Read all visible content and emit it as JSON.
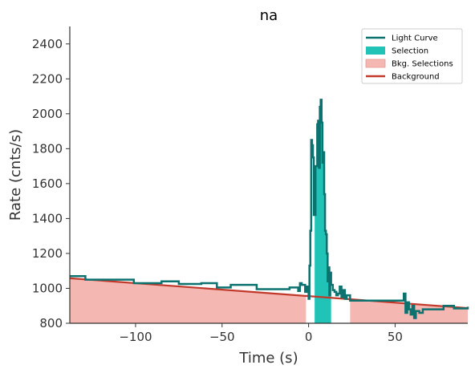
{
  "chart_data": {
    "type": "line",
    "title": "na",
    "xlabel": "Time (s)",
    "ylabel": "Rate (cnts/s)",
    "xlim": [
      -138,
      92
    ],
    "ylim": [
      800,
      2500
    ],
    "xticks": [
      -100,
      -50,
      0,
      50
    ],
    "yticks": [
      800,
      1000,
      1200,
      1400,
      1600,
      1800,
      2000,
      2200,
      2400
    ],
    "grid": false,
    "legend_position": "top-right",
    "colors": {
      "light_curve": "#0b7270",
      "selection": "#20c3b5",
      "bkg_selection": "#f5b7b1",
      "background": "#c0392b"
    },
    "legend": [
      {
        "label": "Light Curve",
        "kind": "line",
        "color": "#0b7270"
      },
      {
        "label": "Selection",
        "kind": "patch",
        "color": "#20c3b5"
      },
      {
        "label": "Bkg. Selections",
        "kind": "patch",
        "color": "#f5b7b1"
      },
      {
        "label": "Background",
        "kind": "line",
        "color": "#c0392b"
      }
    ],
    "selection_interval": [
      3.5,
      13
    ],
    "bkg_intervals": [
      [
        -138,
        -1.5
      ],
      [
        24,
        92
      ]
    ],
    "background_model": {
      "x": [
        -138,
        92
      ],
      "y": [
        1058,
        887
      ]
    },
    "light_curve": {
      "x": [
        -138,
        -129,
        -110,
        -101,
        -85,
        -75,
        -62,
        -53,
        -45,
        -30,
        -21,
        -11,
        -6,
        -5,
        -4,
        -2,
        -1,
        0,
        0.5,
        1,
        1.5,
        2,
        2.5,
        3,
        4,
        5,
        5.5,
        6,
        6.5,
        7,
        7.5,
        8,
        8.5,
        9,
        9.5,
        10,
        10.5,
        11,
        11.5,
        12,
        12.5,
        13,
        14,
        15,
        16,
        17,
        18,
        19,
        20,
        21,
        22,
        24,
        55,
        56,
        57,
        58,
        59,
        60,
        61,
        62,
        64,
        66,
        78,
        84,
        92
      ],
      "y": [
        1070,
        1050,
        1050,
        1030,
        1040,
        1025,
        1030,
        1005,
        1020,
        995,
        995,
        1005,
        985,
        1030,
        1020,
        980,
        1010,
        940,
        1130,
        1330,
        1850,
        1820,
        1750,
        1420,
        1700,
        1940,
        1960,
        1690,
        2040,
        2080,
        1950,
        1720,
        1780,
        1540,
        1330,
        1310,
        1200,
        1040,
        1120,
        960,
        1090,
        1020,
        990,
        980,
        960,
        970,
        1010,
        950,
        990,
        940,
        960,
        930,
        970,
        860,
        920,
        880,
        850,
        900,
        830,
        870,
        860,
        880,
        900,
        885,
        895
      ]
    }
  }
}
